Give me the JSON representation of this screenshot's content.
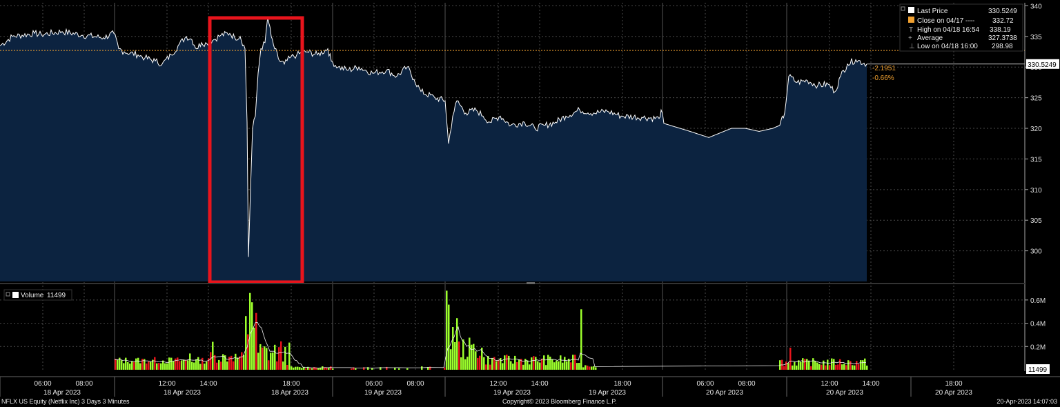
{
  "footer": {
    "left": "NFLX US Equity (Netflix Inc) 3 Days 3 Minutes",
    "center": "Copyright© 2023 Bloomberg Finance L.P.",
    "right": "20-Apr-2023 14:07:03"
  },
  "colors": {
    "background": "#000000",
    "area_fill": "#0c2340",
    "price_line": "#ffffff",
    "close_line": "#f0a030",
    "volume_up": "#9cff2c",
    "volume_down": "#e8141c",
    "highlight_box": "#e8141c",
    "change_text": "#f0a030"
  },
  "legend": {
    "last_price": {
      "label": "Last Price",
      "value": "330.5249"
    },
    "close": {
      "label": "Close on 04/17 ----",
      "value": "332.72"
    },
    "high": {
      "label": "High on 04/18 16:54",
      "value": "338.19"
    },
    "average": {
      "label": "Average",
      "value": "327.3738"
    },
    "low": {
      "label": "Low on 04/18 16:00",
      "value": "298.98"
    }
  },
  "price_tag": "330.5249",
  "change": {
    "abs": "-2.1951",
    "pct": "-0.66%"
  },
  "volume_legend": {
    "label": "Volume",
    "value": "11499"
  },
  "volume_tag": "11499",
  "chart_data": [
    {
      "type": "area",
      "series": [
        {
          "name": "Last Price"
        }
      ],
      "ylim": [
        295,
        340.5
      ],
      "yticks": [
        300,
        305,
        310,
        315,
        320,
        325,
        330,
        335,
        340
      ],
      "reference_line": {
        "name": "Close on 04/17",
        "value": 332.72
      },
      "anchors": [
        [
          0,
          333.5
        ],
        [
          18,
          335
        ],
        [
          50,
          335.5
        ],
        [
          60,
          335.3
        ],
        [
          90,
          335.8
        ],
        [
          120,
          335.2
        ],
        [
          150,
          334.8
        ],
        [
          165,
          335.5
        ],
        [
          172,
          333
        ],
        [
          180,
          332.5
        ],
        [
          200,
          332
        ],
        [
          210,
          331.5
        ],
        [
          225,
          331
        ],
        [
          235,
          330.5
        ],
        [
          248,
          332
        ],
        [
          258,
          333.5
        ],
        [
          270,
          335
        ],
        [
          278,
          334.5
        ],
        [
          285,
          333
        ],
        [
          292,
          334
        ],
        [
          300,
          333.8
        ],
        [
          310,
          334.5
        ],
        [
          320,
          335.2
        ],
        [
          333,
          335.5
        ],
        [
          340,
          334.8
        ],
        [
          348,
          335
        ],
        [
          355,
          333
        ],
        [
          358,
          321
        ],
        [
          360,
          299
        ],
        [
          363,
          310
        ],
        [
          366,
          320
        ],
        [
          370,
          322
        ],
        [
          374,
          329
        ],
        [
          378,
          333
        ],
        [
          384,
          334
        ],
        [
          388,
          338.2
        ],
        [
          393,
          335
        ],
        [
          398,
          333
        ],
        [
          405,
          331
        ],
        [
          412,
          330.5
        ],
        [
          420,
          331.5
        ],
        [
          430,
          332
        ],
        [
          445,
          332.5
        ],
        [
          460,
          332
        ],
        [
          475,
          333
        ],
        [
          480,
          331
        ],
        [
          490,
          330
        ],
        [
          505,
          329.5
        ],
        [
          520,
          330
        ],
        [
          540,
          329
        ],
        [
          560,
          329.5
        ],
        [
          575,
          328.5
        ],
        [
          590,
          330
        ],
        [
          600,
          328
        ],
        [
          610,
          326
        ],
        [
          630,
          325
        ],
        [
          645,
          324.5
        ],
        [
          650,
          317.5
        ],
        [
          656,
          322
        ],
        [
          662,
          324.5
        ],
        [
          675,
          322.5
        ],
        [
          690,
          323
        ],
        [
          700,
          322
        ],
        [
          710,
          321
        ],
        [
          725,
          322
        ],
        [
          740,
          320.5
        ],
        [
          760,
          321
        ],
        [
          775,
          320
        ],
        [
          790,
          320.5
        ],
        [
          805,
          321
        ],
        [
          820,
          322
        ],
        [
          840,
          323
        ],
        [
          860,
          322.5
        ],
        [
          880,
          322.8
        ],
        [
          900,
          322
        ],
        [
          930,
          321.8
        ],
        [
          955,
          321.6
        ],
        [
          958,
          323
        ],
        [
          962,
          320.8
        ],
        [
          1000,
          319.5
        ],
        [
          1027,
          318.5
        ],
        [
          1060,
          320
        ],
        [
          1080,
          320
        ],
        [
          1100,
          319.5
        ],
        [
          1120,
          320
        ],
        [
          1130,
          320.5
        ],
        [
          1137,
          322.5
        ],
        [
          1143,
          328.5
        ],
        [
          1155,
          327.5
        ],
        [
          1170,
          327.8
        ],
        [
          1185,
          327
        ],
        [
          1200,
          327.2
        ],
        [
          1210,
          326
        ],
        [
          1218,
          328.5
        ],
        [
          1228,
          330.5
        ],
        [
          1240,
          331.2
        ],
        [
          1256,
          330.5
        ]
      ]
    },
    {
      "type": "bar",
      "series": [
        {
          "name": "Volume"
        }
      ],
      "ylim": [
        0,
        0.7
      ],
      "yticks": [
        0.2,
        0.4,
        0.6
      ],
      "ytick_labels": [
        "0.2M",
        "0.4M",
        "0.6M"
      ]
    }
  ],
  "time_axis": {
    "labels": [
      {
        "time": "06:00",
        "date": "18 Apr 2023"
      },
      {
        "time": "08:00",
        "date": ""
      },
      {
        "time": "12:00",
        "date": "18 Apr 2023"
      },
      {
        "time": "14:00",
        "date": ""
      },
      {
        "time": "18:00",
        "date": "18 Apr 2023"
      },
      {
        "time": "06:00",
        "date": "19 Apr 2023"
      },
      {
        "time": "08:00",
        "date": ""
      },
      {
        "time": "12:00",
        "date": "19 Apr 2023"
      },
      {
        "time": "14:00",
        "date": ""
      },
      {
        "time": "18:00",
        "date": "19 Apr 2023"
      },
      {
        "time": "06:00",
        "date": "20 Apr 2023"
      },
      {
        "time": "08:00",
        "date": ""
      },
      {
        "time": "12:00",
        "date": "20 Apr 2023"
      },
      {
        "time": "14:00",
        "date": ""
      },
      {
        "time": "18:00",
        "date": "20 Apr 2023"
      }
    ]
  }
}
